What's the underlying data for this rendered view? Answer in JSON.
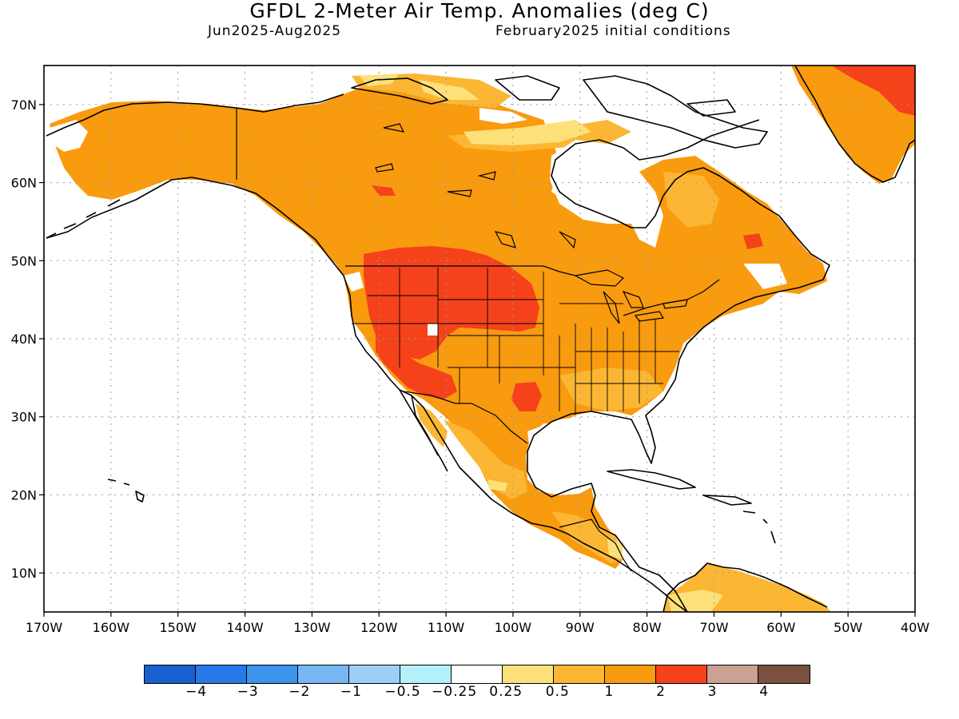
{
  "header": {
    "title": "GFDL 2-Meter Air Temp. Anomalies (deg C)",
    "period": "Jun2025-Aug2025",
    "init": "February2025 initial conditions"
  },
  "map": {
    "region": "North America",
    "lon_range": [
      -170,
      -40
    ],
    "lat_range": [
      5,
      75
    ],
    "lon_labels": [
      "170W",
      "160W",
      "150W",
      "140W",
      "130W",
      "120W",
      "110W",
      "100W",
      "90W",
      "80W",
      "70W",
      "60W",
      "50W",
      "40W"
    ],
    "lat_labels": [
      "10N",
      "20N",
      "30N",
      "40N",
      "50N",
      "60N",
      "70N"
    ],
    "gridlines": "dotted",
    "anomaly_regions": [
      {
        "area": "Alaska, Canada, most of USA, Mexico",
        "category": "1 to 2"
      },
      {
        "area": "US Northern Rockies / Great Basin / Northern Plains",
        "category": "2 to 3"
      },
      {
        "area": "Desert Southwest",
        "category": "2 to 3"
      },
      {
        "area": "Southern Plains (Texas)",
        "category": "2 to 3"
      },
      {
        "area": "Labrador",
        "category": "2 to 3"
      },
      {
        "area": "Northeast Greenland",
        "category": "2 to 3"
      },
      {
        "area": "Arctic Archipelago / Hudson Bay coasts",
        "category": "0.25 to 0.5"
      },
      {
        "area": "Hudson Bay",
        "category": "-0.25 to 0.25"
      }
    ]
  },
  "legend": {
    "colors": [
      "#1a5fd0",
      "#2878e8",
      "#3c94ec",
      "#78b6f4",
      "#9ccff8",
      "#b4f0fa",
      "#ffffff",
      "#fde07a",
      "#fbb734",
      "#f99b0e",
      "#f5421a",
      "#caa192",
      "#7c5040"
    ],
    "labels": [
      "−4",
      "−3",
      "−2",
      "−1",
      "−0.5",
      "−0.25",
      "0.25",
      "0.5",
      "1",
      "2",
      "3",
      "4"
    ]
  }
}
